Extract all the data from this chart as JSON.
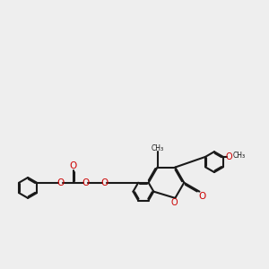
{
  "background_color": "#eeeeee",
  "bond_color": "#1a1a1a",
  "oxygen_color": "#cc0000",
  "lw": 1.5,
  "dbo": 0.06,
  "figsize": [
    3.0,
    3.0
  ],
  "dpi": 100,
  "xlim": [
    -1.5,
    13.5
  ],
  "ylim": [
    -1.5,
    7.5
  ]
}
